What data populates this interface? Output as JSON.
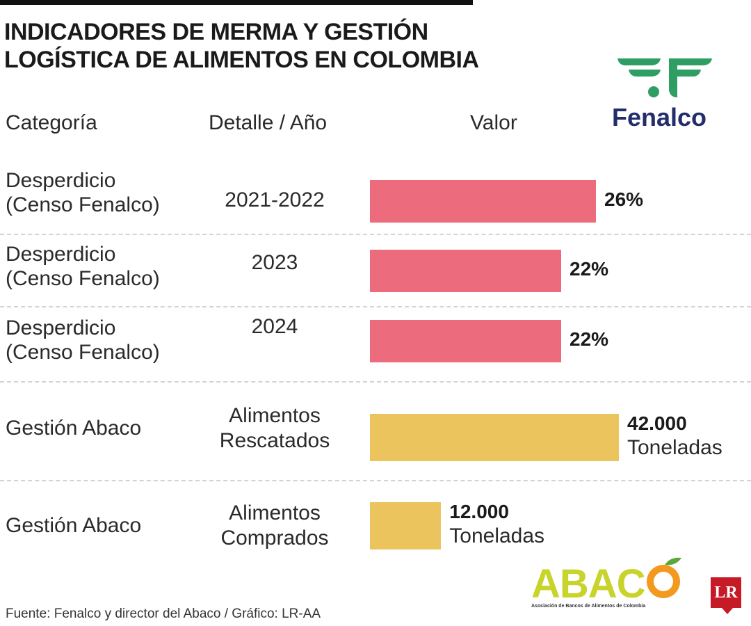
{
  "title": "INDICADORES DE MERMA Y GESTIÓN LOGÍSTICA DE ALIMENTOS EN COLOMBIA",
  "headers": {
    "category": "Categoría",
    "detail": "Detalle / Año",
    "value": "Valor"
  },
  "logos": {
    "fenalco": "Fenalco",
    "abaco": "ABAC",
    "abaco_tagline": "Asociación de Bancos de Alimentos de Colombia",
    "lr": "LR"
  },
  "colors": {
    "waste_bar": "#ec6b7d",
    "abaco_bar": "#ecc45e",
    "fenalco_green": "#2e9e63",
    "fenalco_navy": "#232d6b"
  },
  "chart_data": [
    {
      "type": "bar",
      "orientation": "horizontal",
      "unit": "%",
      "rows": [
        {
          "category_line1": "Desperdicio",
          "category_line2": "(Censo Fenalco)",
          "detail": "2021-2022",
          "value": 26,
          "label": "26%"
        },
        {
          "category_line1": "Desperdicio",
          "category_line2": "(Censo Fenalco)",
          "detail": "2023",
          "value": 22,
          "label": "22%"
        },
        {
          "category_line1": "Desperdicio",
          "category_line2": "(Censo Fenalco)",
          "detail": "2024",
          "value": 22,
          "label": "22%"
        }
      ]
    },
    {
      "type": "bar",
      "orientation": "horizontal",
      "unit": "Toneladas",
      "rows": [
        {
          "category": "Gestión Abaco",
          "detail_line1": "Alimentos",
          "detail_line2": "Rescatados",
          "value": 42000,
          "label": "42.000",
          "unit_label": "Toneladas"
        },
        {
          "category": "Gestión Abaco",
          "detail_line1": "Alimentos",
          "detail_line2": "Comprados",
          "value": 12000,
          "label": "12.000",
          "unit_label": "Toneladas"
        }
      ]
    }
  ],
  "source": "Fuente: Fenalco y director del Abaco / Gráfico: LR-AA"
}
